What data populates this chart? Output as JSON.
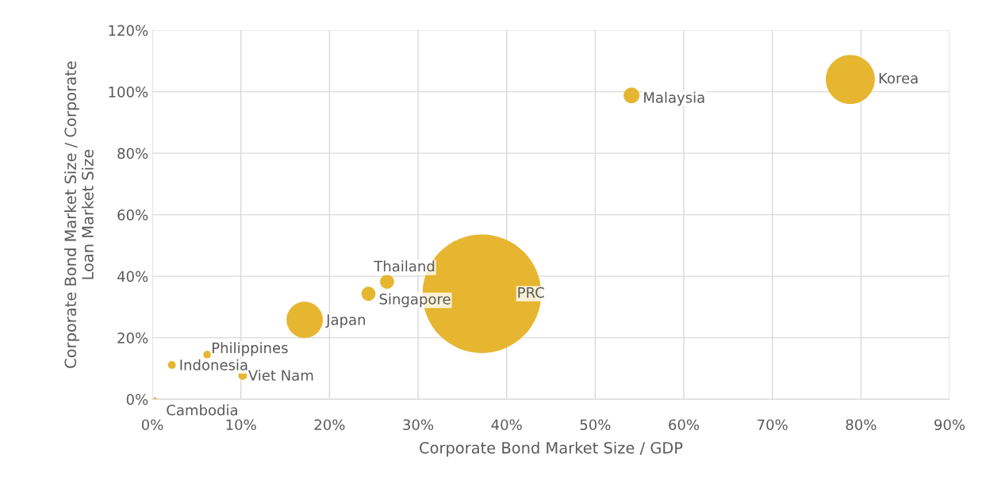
{
  "chart_data": {
    "type": "bubble",
    "xlabel": "Corporate Bond Market Size / GDP",
    "ylabel": "Corporate Bond Market Size / Corporate\nLoan Market Size",
    "xlim": [
      0,
      90
    ],
    "ylim": [
      0,
      120
    ],
    "xticks": [
      {
        "value": 0,
        "label": "0%"
      },
      {
        "value": 10,
        "label": "10%"
      },
      {
        "value": 20,
        "label": "20%"
      },
      {
        "value": 30,
        "label": "30%"
      },
      {
        "value": 40,
        "label": "40%"
      },
      {
        "value": 50,
        "label": "50%"
      },
      {
        "value": 60,
        "label": "60%"
      },
      {
        "value": 70,
        "label": "70%"
      },
      {
        "value": 80,
        "label": "80%"
      },
      {
        "value": 90,
        "label": "90%"
      }
    ],
    "yticks": [
      {
        "value": 0,
        "label": "0%"
      },
      {
        "value": 20,
        "label": "20%"
      },
      {
        "value": 40,
        "label": "40%"
      },
      {
        "value": 60,
        "label": "60%"
      },
      {
        "value": 80,
        "label": "80%"
      },
      {
        "value": 100,
        "label": "100%"
      },
      {
        "value": 120,
        "label": "120%"
      }
    ],
    "grid": true,
    "series": [
      {
        "color": "#e6b631",
        "x": [
          78.8,
          54.1,
          37.2,
          26.5,
          24.4,
          17.2,
          6.2,
          2.2,
          10.2,
          0.3
        ],
        "values": [
          104,
          98.8,
          34.3,
          38.2,
          34.3,
          25.8,
          14.5,
          11.1,
          7.7,
          0
        ],
        "sizes": [
          0.171,
          0.018,
          1,
          0.014,
          0.014,
          0.094,
          0.0044,
          0.0044,
          0.0054,
          0.001
        ]
      }
    ],
    "annotations": [
      {
        "text": "Korea",
        "x": 78.8,
        "y": 104
      },
      {
        "text": "Malaysia",
        "x": 54.1,
        "y": 98.8
      },
      {
        "text": "PRC",
        "x": 37.2,
        "y": 34.3
      },
      {
        "text": "Thailand",
        "x": 26.5,
        "y": 38.2
      },
      {
        "text": "Singapore",
        "x": 24.4,
        "y": 34.3
      },
      {
        "text": "Japan",
        "x": 17.2,
        "y": 25.8
      },
      {
        "text": "Philippines",
        "x": 6.2,
        "y": 14.5
      },
      {
        "text": "Indonesia",
        "x": 2.2,
        "y": 11.1
      },
      {
        "text": "Viet Nam",
        "x": 10.2,
        "y": 7.7
      },
      {
        "text": "Cambodia",
        "x": 0.3,
        "y": 0
      }
    ]
  }
}
